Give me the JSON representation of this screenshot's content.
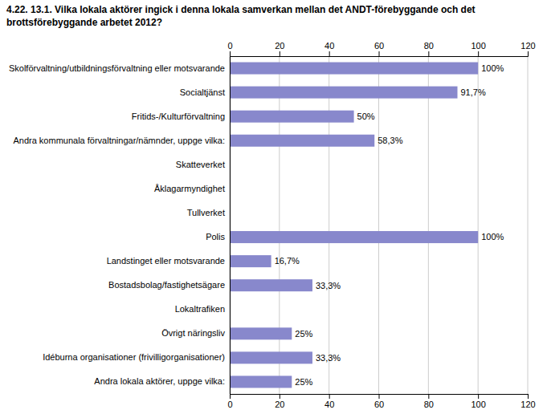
{
  "chart_data": {
    "type": "bar",
    "orientation": "horizontal",
    "title": "4.22. 13.1. Vilka lokala aktörer ingick i denna lokala samverkan mellan det ANDT-förebyggande och det",
    "subtitle": "brottsförebyggande arbetet 2012?",
    "categories": [
      "Skolförvaltning/utbildningsförvaltning eller motsvarande",
      "Socialtjänst",
      "Fritids-/Kulturförvaltning",
      "Andra kommunala förvaltningar/nämnder, uppge vilka:",
      "Skatteverket",
      "Åklagarmyndighet",
      "Tullverket",
      "Polis",
      "Landstinget eller motsvarande",
      "Bostadsbolag/fastighetsägare",
      "Lokaltrafiken",
      "Övrigt näringsliv",
      "Idéburna organisationer (frivilligorganisationer)",
      "Andra lokala aktörer, uppge vilka:"
    ],
    "values": [
      100,
      91.7,
      50,
      58.3,
      0,
      0,
      0,
      100,
      16.7,
      33.3,
      0,
      25,
      33.3,
      25
    ],
    "value_labels": [
      "100%",
      "91,7%",
      "50%",
      "58,3%",
      null,
      null,
      null,
      "100%",
      "16,7%",
      "33,3%",
      null,
      "25%",
      "33,3%",
      "25%"
    ],
    "data_labels": true,
    "color": "#8888cc",
    "xlim": [
      0,
      120
    ],
    "xticks": [
      0,
      20,
      40,
      60,
      80,
      100,
      120
    ],
    "grid": true
  }
}
